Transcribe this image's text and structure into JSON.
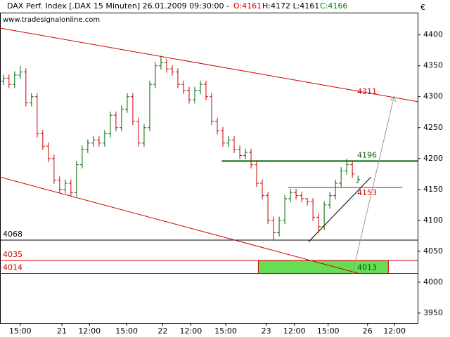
{
  "chart_data": {
    "type": "ohlc",
    "header": {
      "title": "DAX Perf. Index [.DAX  15 Minuten] 26.01.2009 09:30:00 -",
      "open": "O:4161",
      "high_low": "H:4172 L:4161",
      "close": "C:4166",
      "source": "www.tradesignalonline.com"
    },
    "currency": "€",
    "up_color": "#006400",
    "down_color": "#cc0000",
    "xlim": [
      -0.6,
      73.6
    ],
    "xticks": [
      {
        "value": 3,
        "label": "15:00"
      },
      {
        "value": 10.4,
        "label": "21"
      },
      {
        "value": 15.3,
        "label": "12:00"
      },
      {
        "value": 21.9,
        "label": "15:00"
      },
      {
        "value": 28.3,
        "label": "22"
      },
      {
        "value": 33.3,
        "label": "12:00"
      },
      {
        "value": 39.5,
        "label": "15:00"
      },
      {
        "value": 46.7,
        "label": "23"
      },
      {
        "value": 51.7,
        "label": "12:00"
      },
      {
        "value": 57.7,
        "label": "15:00"
      },
      {
        "value": 64.7,
        "label": "26"
      },
      {
        "value": 69.5,
        "label": "12:00"
      }
    ],
    "ylim": [
      3934,
      4436
    ],
    "yticks": [
      3950,
      4000,
      4050,
      4100,
      4150,
      4200,
      4250,
      4300,
      4350,
      4400
    ],
    "open": [
      4325,
      4330,
      4320,
      4335,
      4340,
      4290,
      4300,
      4240,
      4220,
      4200,
      4165,
      4150,
      4160,
      4145,
      4190,
      4215,
      4225,
      4230,
      4225,
      4240,
      4270,
      4250,
      4280,
      4300,
      4260,
      4225,
      4250,
      4320,
      4350,
      4355,
      4345,
      4340,
      4320,
      4310,
      4295,
      4310,
      4320,
      4300,
      4260,
      4245,
      4225,
      4230,
      4215,
      4205,
      4210,
      4190,
      4160,
      4140,
      4100,
      4080,
      4100,
      4135,
      4145,
      4140,
      4135,
      4130,
      4105,
      4090,
      4125,
      4140,
      4160,
      4180,
      4190,
      4161
    ],
    "high": [
      4336,
      4336,
      4341,
      4350,
      4346,
      4306,
      4306,
      4246,
      4226,
      4206,
      4171,
      4166,
      4166,
      4196,
      4221,
      4231,
      4236,
      4236,
      4246,
      4276,
      4276,
      4286,
      4306,
      4306,
      4266,
      4256,
      4326,
      4356,
      4366,
      4361,
      4351,
      4346,
      4326,
      4316,
      4316,
      4326,
      4326,
      4306,
      4266,
      4251,
      4236,
      4236,
      4221,
      4216,
      4216,
      4196,
      4166,
      4146,
      4106,
      4106,
      4141,
      4151,
      4151,
      4146,
      4136,
      4136,
      4111,
      4131,
      4146,
      4166,
      4186,
      4200,
      4196,
      4172
    ],
    "low": [
      4319,
      4314,
      4314,
      4329,
      4284,
      4284,
      4234,
      4214,
      4194,
      4159,
      4144,
      4144,
      4139,
      4139,
      4184,
      4209,
      4219,
      4219,
      4219,
      4234,
      4244,
      4244,
      4274,
      4254,
      4219,
      4219,
      4244,
      4314,
      4344,
      4339,
      4334,
      4314,
      4304,
      4289,
      4289,
      4304,
      4294,
      4254,
      4239,
      4219,
      4219,
      4209,
      4199,
      4199,
      4184,
      4154,
      4134,
      4094,
      4068,
      4074,
      4094,
      4129,
      4134,
      4129,
      4124,
      4099,
      4080,
      4084,
      4119,
      4134,
      4154,
      4174,
      4169,
      4161
    ],
    "close": [
      4330,
      4320,
      4335,
      4340,
      4290,
      4300,
      4240,
      4220,
      4200,
      4165,
      4150,
      4160,
      4145,
      4190,
      4215,
      4225,
      4230,
      4225,
      4240,
      4270,
      4250,
      4280,
      4300,
      4260,
      4225,
      4250,
      4320,
      4350,
      4355,
      4345,
      4340,
      4320,
      4310,
      4295,
      4310,
      4320,
      4300,
      4260,
      4245,
      4225,
      4230,
      4215,
      4205,
      4210,
      4190,
      4160,
      4140,
      4100,
      4080,
      4100,
      4135,
      4145,
      4140,
      4135,
      4130,
      4105,
      4090,
      4125,
      4140,
      4160,
      4180,
      4190,
      4175,
      4166
    ],
    "levels": [
      {
        "value": 4068,
        "color": "#000000",
        "x": [
          -0.6,
          73.6
        ],
        "label_side": "left"
      },
      {
        "value": 4035,
        "color": "#cc0000",
        "x": [
          -0.6,
          73.6
        ],
        "label_side": "left"
      },
      {
        "value": 4014,
        "color": "#cc0000",
        "x": [
          -0.6,
          73.6
        ],
        "label_side": "left"
      },
      {
        "value": 4196,
        "color": "#006400",
        "x": [
          38.8,
          73.6
        ],
        "label_side": "right"
      },
      {
        "value": 4153,
        "color": "#cc0000",
        "x": [
          50.6,
          70.9
        ],
        "label_side": "right"
      }
    ],
    "zone": {
      "from": 4014,
      "to": 4035,
      "x": [
        45.3,
        68.4
      ],
      "color": "#66dd55",
      "label": 4013
    },
    "trendlines": [
      {
        "x": [
          -0.6,
          73.6
        ],
        "y": [
          4411,
          4292
        ],
        "color": "#cc0000",
        "label": 4311
      },
      {
        "x": [
          -0.6,
          63.2
        ],
        "y": [
          4170,
          4014
        ],
        "color": "#cc0000"
      },
      {
        "x": [
          54.2,
          65.3
        ],
        "y": [
          4065,
          4170
        ],
        "color": "#000000"
      }
    ],
    "arrow": {
      "x": [
        62,
        69.4
      ],
      "y": [
        4013,
        4300
      ],
      "color": "#999999"
    }
  }
}
